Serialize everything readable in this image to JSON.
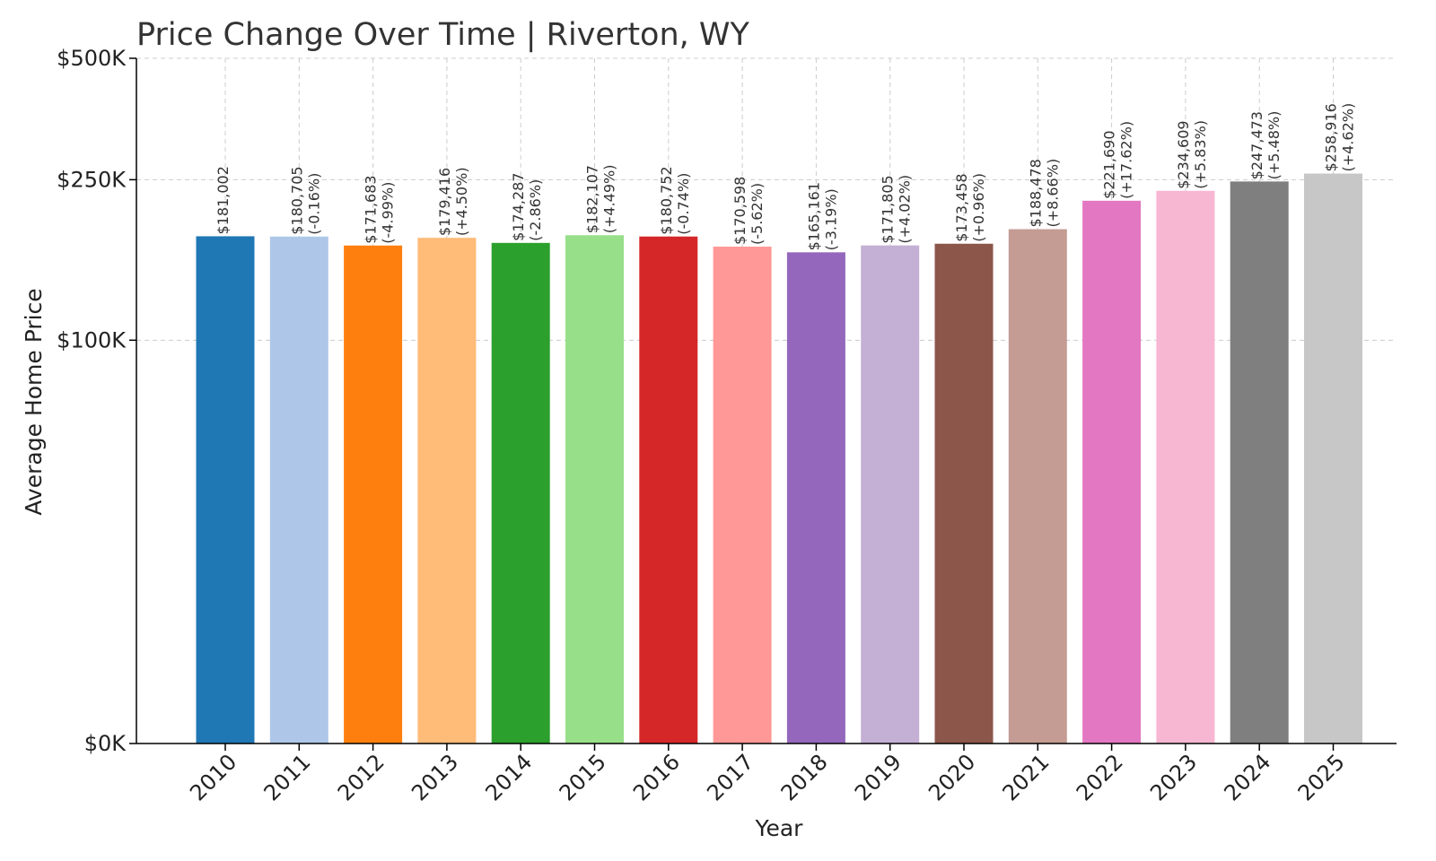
{
  "chart_data": {
    "type": "bar",
    "title": "Price Change Over Time | Riverton, WY",
    "xlabel": "Year",
    "ylabel": "Average Home Price",
    "ylim": [
      0,
      500000
    ],
    "y_scale": "symlog",
    "y_ticks": [
      {
        "value": 0,
        "label": "$0K"
      },
      {
        "value": 100000,
        "label": "$100K"
      },
      {
        "value": 250000,
        "label": "$250K"
      },
      {
        "value": 500000,
        "label": "$500K"
      }
    ],
    "grid": true,
    "categories": [
      "2010",
      "2011",
      "2012",
      "2013",
      "2014",
      "2015",
      "2016",
      "2017",
      "2018",
      "2019",
      "2020",
      "2021",
      "2022",
      "2023",
      "2024",
      "2025"
    ],
    "values": [
      181002,
      180705,
      171683,
      179416,
      174287,
      182107,
      180752,
      170598,
      165161,
      171805,
      173458,
      188478,
      221690,
      234609,
      247473,
      258916
    ],
    "value_labels": [
      "$181,002",
      "$180,705",
      "$171,683",
      "$179,416",
      "$174,287",
      "$182,107",
      "$180,752",
      "$170,598",
      "$165,161",
      "$171,805",
      "$173,458",
      "$188,478",
      "$221,690",
      "$234,609",
      "$247,473",
      "$258,916"
    ],
    "change_labels": [
      "",
      "(-0.16%)",
      "(-4.99%)",
      "(+4.50%)",
      "(-2.86%)",
      "(+4.49%)",
      "(-0.74%)",
      "(-5.62%)",
      "(-3.19%)",
      "(+4.02%)",
      "(+0.96%)",
      "(+8.66%)",
      "(+17.62%)",
      "(+5.83%)",
      "(+5.48%)",
      "(+4.62%)"
    ],
    "colors": [
      "#1f77b4",
      "#aec7e8",
      "#ff7f0e",
      "#ffbb78",
      "#2ca02c",
      "#98df8a",
      "#d62728",
      "#ff9896",
      "#9467bd",
      "#c5b0d5",
      "#8c564b",
      "#c49c94",
      "#e377c2",
      "#f7b6d2",
      "#7f7f7f",
      "#c7c7c7"
    ]
  }
}
